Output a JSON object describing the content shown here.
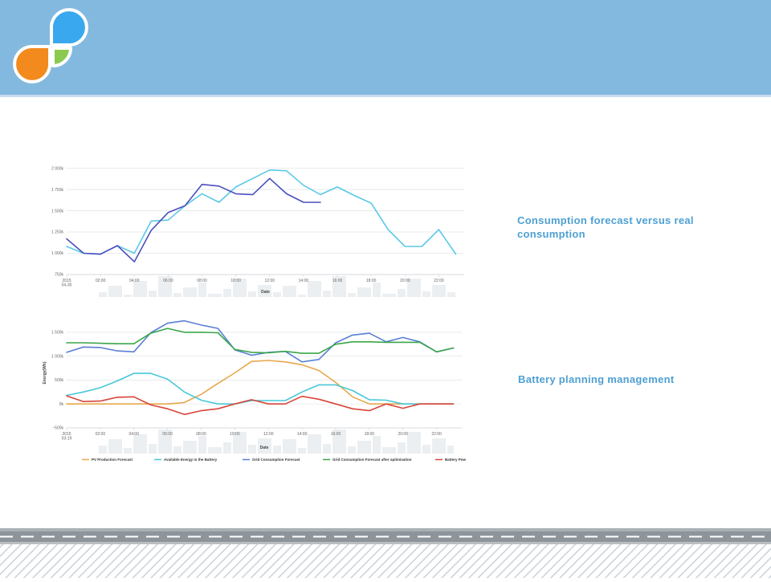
{
  "captions": {
    "consumption": "Consumption forecast versus real consumption",
    "battery": "Battery planning management"
  },
  "colors": {
    "header": "#84b9df",
    "logo_blue": "#3aa8ee",
    "logo_orange": "#f28a1d",
    "logo_green": "#8cc950",
    "caption": "#4ea0d2"
  },
  "chart_data": [
    {
      "type": "line",
      "xlabel": "Date",
      "ylabel": "",
      "x_ticks": [
        "2015\n04-30",
        "02:00",
        "04:00",
        "06:00",
        "08:00",
        "10:00",
        "12:00",
        "14:00",
        "16:00",
        "18:00",
        "20:00",
        "22:00"
      ],
      "y_ticks": [
        "750k",
        "1 000k",
        "1 250k",
        "1 500k",
        "1 750k",
        "2 000k"
      ],
      "ylim": [
        750000,
        2100000
      ],
      "xlim": [
        0,
        23.5
      ],
      "grid": true,
      "series": [
        {
          "color": "#5bc8e6",
          "x": [
            0,
            1,
            2,
            3,
            4,
            5,
            6,
            7,
            8,
            9,
            10,
            11,
            12,
            13,
            14,
            15,
            16,
            17,
            18,
            19,
            20,
            21,
            22,
            23
          ],
          "values": [
            1080000,
            1000000,
            990000,
            1090000,
            1000000,
            1380000,
            1390000,
            1560000,
            1700000,
            1600000,
            1780000,
            1880000,
            1980000,
            1970000,
            1800000,
            1690000,
            1780000,
            1680000,
            1590000,
            1280000,
            1080000,
            1080000,
            1280000,
            990000
          ]
        },
        {
          "color": "#4b4fbe",
          "x": [
            0,
            1,
            2,
            3,
            4,
            5,
            6,
            7,
            8,
            9,
            10,
            11,
            12,
            13,
            14,
            15
          ],
          "values": [
            1170000,
            1000000,
            990000,
            1090000,
            900000,
            1270000,
            1480000,
            1560000,
            1810000,
            1790000,
            1700000,
            1690000,
            1880000,
            1700000,
            1600000,
            1600000
          ]
        }
      ]
    },
    {
      "type": "line",
      "xlabel": "Date",
      "ylabel": "Energy(Wh)",
      "x_ticks": [
        "2015\n03-19",
        "02:00",
        "04:00",
        "06:00",
        "08:00",
        "10:00",
        "12:00",
        "14:00",
        "16:00",
        "18:00",
        "20:00",
        "22:00"
      ],
      "y_ticks": [
        "−500k",
        "0k",
        "500k",
        "1 000k",
        "1 500k"
      ],
      "ylim": [
        -500000,
        1800000
      ],
      "xlim": [
        0,
        23.5
      ],
      "grid": true,
      "legend_position": "bottom",
      "series": [
        {
          "name": "PV Production Forecast",
          "color": "#e8a74c",
          "x": [
            0,
            1,
            2,
            3,
            4,
            5,
            6,
            7,
            8,
            9,
            10,
            11,
            12,
            13,
            14,
            15,
            16,
            17,
            18,
            19,
            20,
            21,
            22,
            23
          ],
          "values": [
            0,
            0,
            0,
            0,
            0,
            0,
            0,
            30000,
            200000,
            430000,
            650000,
            890000,
            910000,
            880000,
            820000,
            700000,
            450000,
            150000,
            0,
            0,
            0,
            0,
            0,
            0
          ]
        },
        {
          "name": "Available Energy in the Battery",
          "color": "#48c8d8",
          "x": [
            0,
            1,
            2,
            3,
            4,
            5,
            6,
            7,
            8,
            9,
            10,
            11,
            12,
            13,
            14,
            15,
            16,
            17,
            18,
            19,
            20,
            21,
            22,
            23
          ],
          "values": [
            180000,
            250000,
            340000,
            480000,
            640000,
            640000,
            520000,
            250000,
            80000,
            0,
            0,
            70000,
            70000,
            70000,
            250000,
            400000,
            400000,
            280000,
            90000,
            80000,
            0,
            0,
            0,
            0
          ]
        },
        {
          "name": "Grid Consumption Forecast",
          "color": "#5a7fd6",
          "x": [
            0,
            1,
            2,
            3,
            4,
            5,
            6,
            7,
            8,
            9,
            10,
            11,
            12,
            13,
            14,
            15,
            16,
            17,
            18,
            19,
            20,
            21,
            22,
            23
          ],
          "values": [
            1080000,
            1190000,
            1180000,
            1110000,
            1090000,
            1490000,
            1690000,
            1740000,
            1650000,
            1580000,
            1130000,
            1020000,
            1080000,
            1100000,
            880000,
            930000,
            1280000,
            1440000,
            1480000,
            1300000,
            1390000,
            1300000,
            1090000,
            1170000
          ]
        },
        {
          "name": "Grid Consumption Forecast after optimisation",
          "color": "#3aa64a",
          "x": [
            0,
            1,
            2,
            3,
            4,
            5,
            6,
            7,
            8,
            9,
            10,
            11,
            12,
            13,
            14,
            15,
            16,
            17,
            18,
            19,
            20,
            21,
            22,
            23
          ],
          "values": [
            1280000,
            1280000,
            1270000,
            1260000,
            1260000,
            1480000,
            1580000,
            1500000,
            1500000,
            1490000,
            1140000,
            1080000,
            1070000,
            1100000,
            1060000,
            1060000,
            1250000,
            1300000,
            1300000,
            1290000,
            1290000,
            1290000,
            1090000,
            1170000
          ]
        },
        {
          "name": "Battery Power",
          "color": "#d8453a",
          "x": [
            0,
            1,
            2,
            3,
            4,
            5,
            6,
            7,
            8,
            9,
            10,
            11,
            12,
            13,
            14,
            15,
            16,
            17,
            18,
            19,
            20,
            21,
            22,
            23
          ],
          "values": [
            170000,
            50000,
            60000,
            140000,
            150000,
            -20000,
            -100000,
            -220000,
            -140000,
            -100000,
            0,
            90000,
            0,
            0,
            160000,
            100000,
            0,
            -100000,
            -140000,
            0,
            -90000,
            0,
            0,
            0
          ]
        }
      ]
    }
  ]
}
